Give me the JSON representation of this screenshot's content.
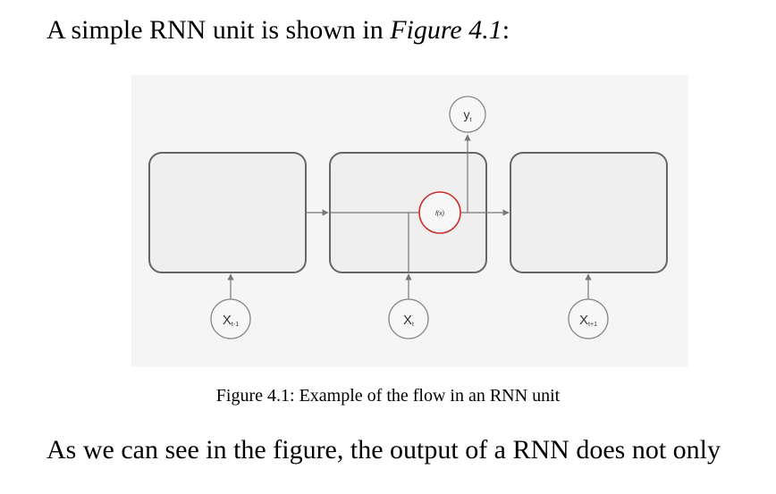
{
  "intro": {
    "text_before": "A simple RNN unit is shown in ",
    "figure_ref": "Figure 4.1",
    "text_after": ":"
  },
  "diagram": {
    "output_label": "y",
    "output_sub": "t",
    "activation_label": "f(x)",
    "inputs": [
      {
        "label": "X",
        "sub": "t-1"
      },
      {
        "label": "X",
        "sub": "t"
      },
      {
        "label": "X",
        "sub": "t+1"
      }
    ],
    "colors": {
      "background": "#f5f5f5",
      "cell_fill": "#efefef",
      "cell_stroke": "#666666",
      "line": "#777777",
      "activation_stroke": "#cc3333"
    }
  },
  "caption": "Figure 4.1: Example of the flow in an RNN unit",
  "paragraph": "As we can see in the figure, the output of a RNN does not only"
}
